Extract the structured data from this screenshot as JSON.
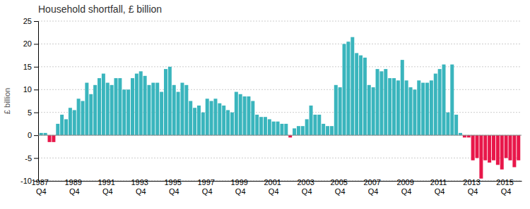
{
  "chart_data": {
    "type": "bar",
    "title": "Household shortfall, £ billion",
    "ylabel": "£ billion",
    "categories": [
      "1987 Q4",
      null,
      null,
      null,
      null,
      null,
      null,
      null,
      "1989 Q4",
      null,
      null,
      null,
      null,
      null,
      null,
      null,
      "1991 Q4",
      null,
      null,
      null,
      null,
      null,
      null,
      null,
      "1993 Q4",
      null,
      null,
      null,
      null,
      null,
      null,
      null,
      "1995 Q4",
      null,
      null,
      null,
      null,
      null,
      null,
      null,
      "1997 Q4",
      null,
      null,
      null,
      null,
      null,
      null,
      null,
      "1999 Q4",
      null,
      null,
      null,
      null,
      null,
      null,
      null,
      "2001 Q4",
      null,
      null,
      null,
      null,
      null,
      null,
      null,
      "2003 Q4",
      null,
      null,
      null,
      null,
      null,
      null,
      null,
      "2005 Q4",
      null,
      null,
      null,
      null,
      null,
      null,
      null,
      "2007 Q4",
      null,
      null,
      null,
      null,
      null,
      null,
      null,
      "2009 Q4",
      null,
      null,
      null,
      null,
      null,
      null,
      null,
      "2011 Q4",
      null,
      null,
      null,
      null,
      null,
      null,
      null,
      "2013 Q4",
      null,
      null,
      null,
      null,
      null,
      null,
      null,
      "2015 Q4",
      null,
      null,
      null
    ],
    "values": [
      0.5,
      0.5,
      -1.5,
      -1.5,
      2.5,
      4.5,
      3.5,
      6.0,
      5.5,
      8.0,
      7.5,
      11.5,
      9.0,
      11.0,
      12.5,
      13.5,
      11.5,
      11.0,
      12.5,
      12.5,
      10.0,
      10.0,
      12.5,
      13.5,
      14.0,
      13.0,
      11.0,
      11.5,
      11.5,
      9.5,
      14.5,
      15.0,
      11.0,
      9.5,
      11.5,
      11.0,
      7.5,
      6.0,
      6.5,
      5.0,
      8.0,
      7.5,
      8.0,
      7.0,
      6.5,
      5.5,
      5.0,
      9.5,
      9.0,
      8.5,
      8.5,
      7.5,
      4.5,
      4.0,
      4.0,
      3.5,
      3.0,
      3.0,
      2.5,
      2.5,
      -0.5,
      1.5,
      2.0,
      2.0,
      3.5,
      6.5,
      4.5,
      4.5,
      2.5,
      2.0,
      2.0,
      11.0,
      10.5,
      20.0,
      20.5,
      21.5,
      18.0,
      17.5,
      17.0,
      11.0,
      10.5,
      14.5,
      14.0,
      14.5,
      12.5,
      12.5,
      12.0,
      16.5,
      12.0,
      10.5,
      10.0,
      12.0,
      11.5,
      11.5,
      12.0,
      13.5,
      14.5,
      15.5,
      5.0,
      15.5,
      4.5,
      0.5,
      -0.5,
      -0.5,
      -5.5,
      -5.0,
      -9.5,
      -5.5,
      -6.0,
      -5.5,
      -6.5,
      -7.5,
      -5.0,
      -5.5,
      -7.0,
      -5.5
    ],
    "colors": [
      "#3ab5bd",
      "#3ab5bd",
      "#e8174a",
      "#e8174a",
      "#3ab5bd",
      "#3ab5bd",
      "#3ab5bd",
      "#3ab5bd",
      "#3ab5bd",
      "#3ab5bd",
      "#3ab5bd",
      "#3ab5bd",
      "#3ab5bd",
      "#3ab5bd",
      "#3ab5bd",
      "#3ab5bd",
      "#3ab5bd",
      "#3ab5bd",
      "#3ab5bd",
      "#3ab5bd",
      "#3ab5bd",
      "#3ab5bd",
      "#3ab5bd",
      "#3ab5bd",
      "#3ab5bd",
      "#3ab5bd",
      "#3ab5bd",
      "#3ab5bd",
      "#3ab5bd",
      "#3ab5bd",
      "#3ab5bd",
      "#3ab5bd",
      "#3ab5bd",
      "#3ab5bd",
      "#3ab5bd",
      "#3ab5bd",
      "#3ab5bd",
      "#3ab5bd",
      "#3ab5bd",
      "#3ab5bd",
      "#3ab5bd",
      "#3ab5bd",
      "#3ab5bd",
      "#3ab5bd",
      "#3ab5bd",
      "#3ab5bd",
      "#3ab5bd",
      "#3ab5bd",
      "#3ab5bd",
      "#3ab5bd",
      "#3ab5bd",
      "#3ab5bd",
      "#3ab5bd",
      "#3ab5bd",
      "#3ab5bd",
      "#3ab5bd",
      "#3ab5bd",
      "#3ab5bd",
      "#3ab5bd",
      "#3ab5bd",
      "#e8174a",
      "#3ab5bd",
      "#3ab5bd",
      "#3ab5bd",
      "#3ab5bd",
      "#3ab5bd",
      "#3ab5bd",
      "#3ab5bd",
      "#3ab5bd",
      "#3ab5bd",
      "#3ab5bd",
      "#3ab5bd",
      "#3ab5bd",
      "#3ab5bd",
      "#3ab5bd",
      "#3ab5bd",
      "#3ab5bd",
      "#3ab5bd",
      "#3ab5bd",
      "#3ab5bd",
      "#3ab5bd",
      "#3ab5bd",
      "#3ab5bd",
      "#3ab5bd",
      "#3ab5bd",
      "#3ab5bd",
      "#3ab5bd",
      "#3ab5bd",
      "#3ab5bd",
      "#3ab5bd",
      "#3ab5bd",
      "#3ab5bd",
      "#3ab5bd",
      "#3ab5bd",
      "#3ab5bd",
      "#3ab5bd",
      "#3ab5bd",
      "#3ab5bd",
      "#3ab5bd",
      "#3ab5bd",
      "#3ab5bd",
      "#3ab5bd",
      "#e8174a",
      "#e8174a",
      "#e8174a",
      "#e8174a",
      "#e8174a",
      "#e8174a",
      "#e8174a",
      "#e8174a",
      "#e8174a",
      "#e8174a",
      "#e8174a",
      "#e8174a",
      "#e8174a",
      "#e8174a"
    ],
    "ylim": [
      -10,
      25
    ],
    "yticks": [
      -10,
      -5,
      0,
      5,
      10,
      15,
      20,
      25
    ],
    "grid": true
  }
}
